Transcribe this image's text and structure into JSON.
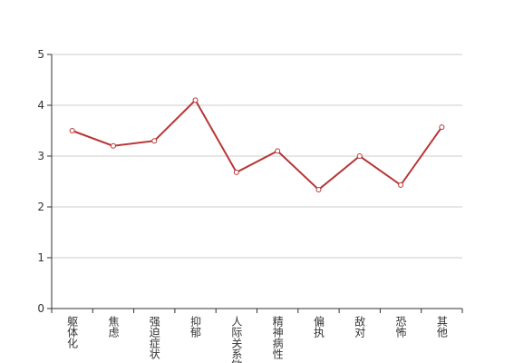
{
  "chart_data": {
    "type": "line",
    "categories": [
      "躯体化",
      "焦虑",
      "强迫症状",
      "抑郁",
      "人际关系敏感",
      "精神病性",
      "偏执",
      "敌对",
      "恐怖",
      "其他"
    ],
    "values": [
      3.5,
      3.2,
      3.3,
      4.1,
      2.68,
      3.1,
      2.34,
      3.0,
      2.43,
      3.57
    ],
    "color": "#b83535",
    "ylim": [
      0,
      5
    ],
    "yticks": [
      0,
      1,
      2,
      3,
      4,
      5
    ],
    "grid": true
  }
}
